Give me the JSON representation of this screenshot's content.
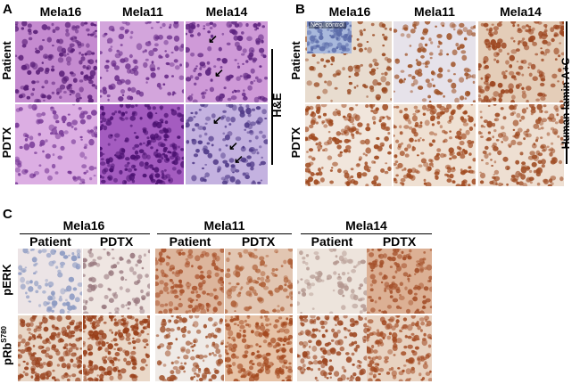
{
  "panels": {
    "A": {
      "label": "A",
      "columns": [
        "Mela16",
        "Mela11",
        "Mela14"
      ],
      "rows": [
        "Patient",
        "PDTX"
      ],
      "side_label": "H&E"
    },
    "B": {
      "label": "B",
      "columns": [
        "Mela16",
        "Mela11",
        "Mela14"
      ],
      "rows": [
        "Patient",
        "PDTX"
      ],
      "side_label": "Human lamin A+C",
      "inset_label": "Neg. control"
    },
    "C": {
      "label": "C",
      "groups": [
        "Mela16",
        "Mela11",
        "Mela14"
      ],
      "subcolumns": [
        "Patient",
        "PDTX"
      ],
      "rows": [
        "pERK",
        "pRb"
      ],
      "row2_superscript": "S780"
    }
  },
  "stain_colors": {
    "he_purple": "#9a4fb0",
    "he_pink": "#d9a8dc",
    "dab_brown": "#a8502a",
    "hematoxylin_blue": "#8ea0c8"
  }
}
